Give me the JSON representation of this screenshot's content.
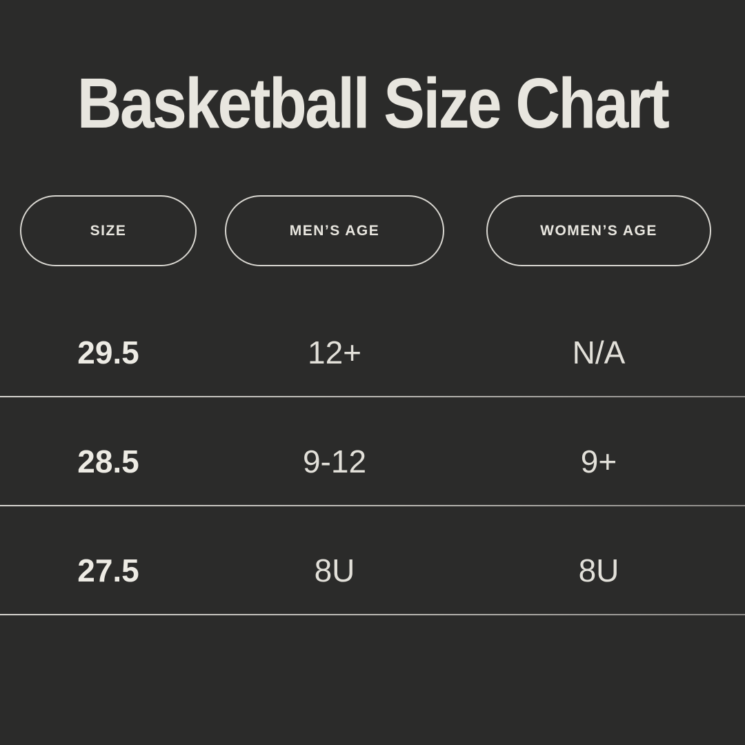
{
  "title": "Basketball Size Chart",
  "theme": {
    "background": "#2b2b2a",
    "text": "#e8e6df",
    "pill_border": "#d9d7d1",
    "divider": "#b9b7b2"
  },
  "chart_data": {
    "type": "table",
    "title": "Basketball Size Chart",
    "columns": [
      "SIZE",
      "MEN’S AGE",
      "WOMEN’S AGE"
    ],
    "rows": [
      [
        "29.5",
        "12+",
        "N/A"
      ],
      [
        "28.5",
        "9-12",
        "9+"
      ],
      [
        "27.5",
        "8U",
        "8U"
      ]
    ]
  }
}
